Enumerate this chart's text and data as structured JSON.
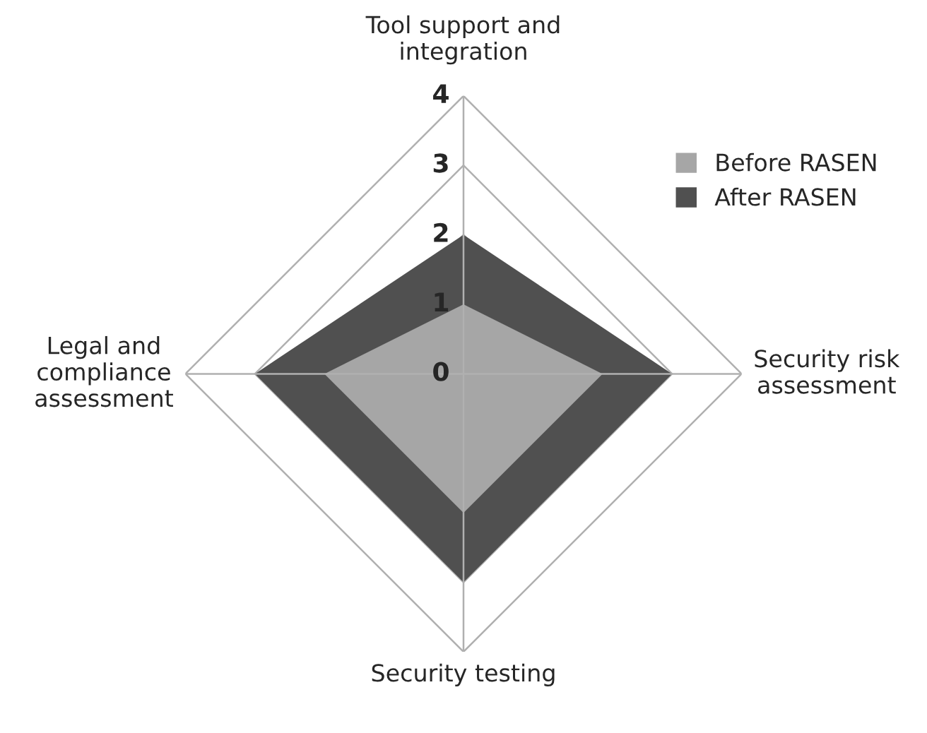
{
  "chart_data": {
    "type": "radar",
    "categories": [
      "Tool support and\nintegration",
      "Security risk\nassessment",
      "Security testing",
      "Legal and\ncompliance\nassessment"
    ],
    "series": [
      {
        "name": "Before RASEN",
        "color": "#a6a6a6",
        "values": [
          1,
          2,
          2,
          2
        ]
      },
      {
        "name": "After RASEN",
        "color": "#505050",
        "values": [
          2,
          3,
          3,
          3
        ]
      }
    ],
    "ylim": [
      0,
      4
    ],
    "yticks": [
      0,
      1,
      2,
      3,
      4
    ],
    "grid": true,
    "legend": "top right"
  }
}
